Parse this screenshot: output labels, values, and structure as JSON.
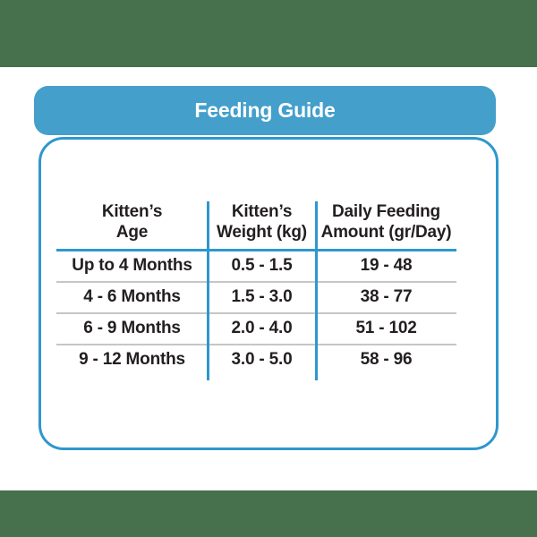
{
  "page": {
    "background_color": "#FFFFFF",
    "band_color": "#47704D"
  },
  "title_bar": {
    "label": "Feeding Guide",
    "bg_color": "#449FCB",
    "text_color": "#FFFFFF"
  },
  "table": {
    "line_color": "#2E97CE",
    "separator_color": "#C6C6C6",
    "text_color": "#231F20",
    "header_lines": [
      {
        "line1": "Kitten’s",
        "line2": "Age"
      },
      {
        "line1": "Kitten’s",
        "line2": "Weight (kg)"
      },
      {
        "line1": "Daily Feeding",
        "line2": "Amount (gr/Day)"
      }
    ]
  },
  "chart_data": {
    "type": "table",
    "title": "Feeding Guide",
    "columns": [
      "Kitten's Age",
      "Kitten's Weight (kg)",
      "Daily Feeding Amount (gr/Day)"
    ],
    "rows": [
      [
        "Up to 4 Months",
        "0.5 - 1.5",
        "19 - 48"
      ],
      [
        "4 - 6 Months",
        "1.5 - 3.0",
        "38 - 77"
      ],
      [
        "6 - 9 Months",
        "2.0 - 4.0",
        "51 - 102"
      ],
      [
        "9 - 12 Months",
        "3.0 - 5.0",
        "58 - 96"
      ]
    ]
  }
}
